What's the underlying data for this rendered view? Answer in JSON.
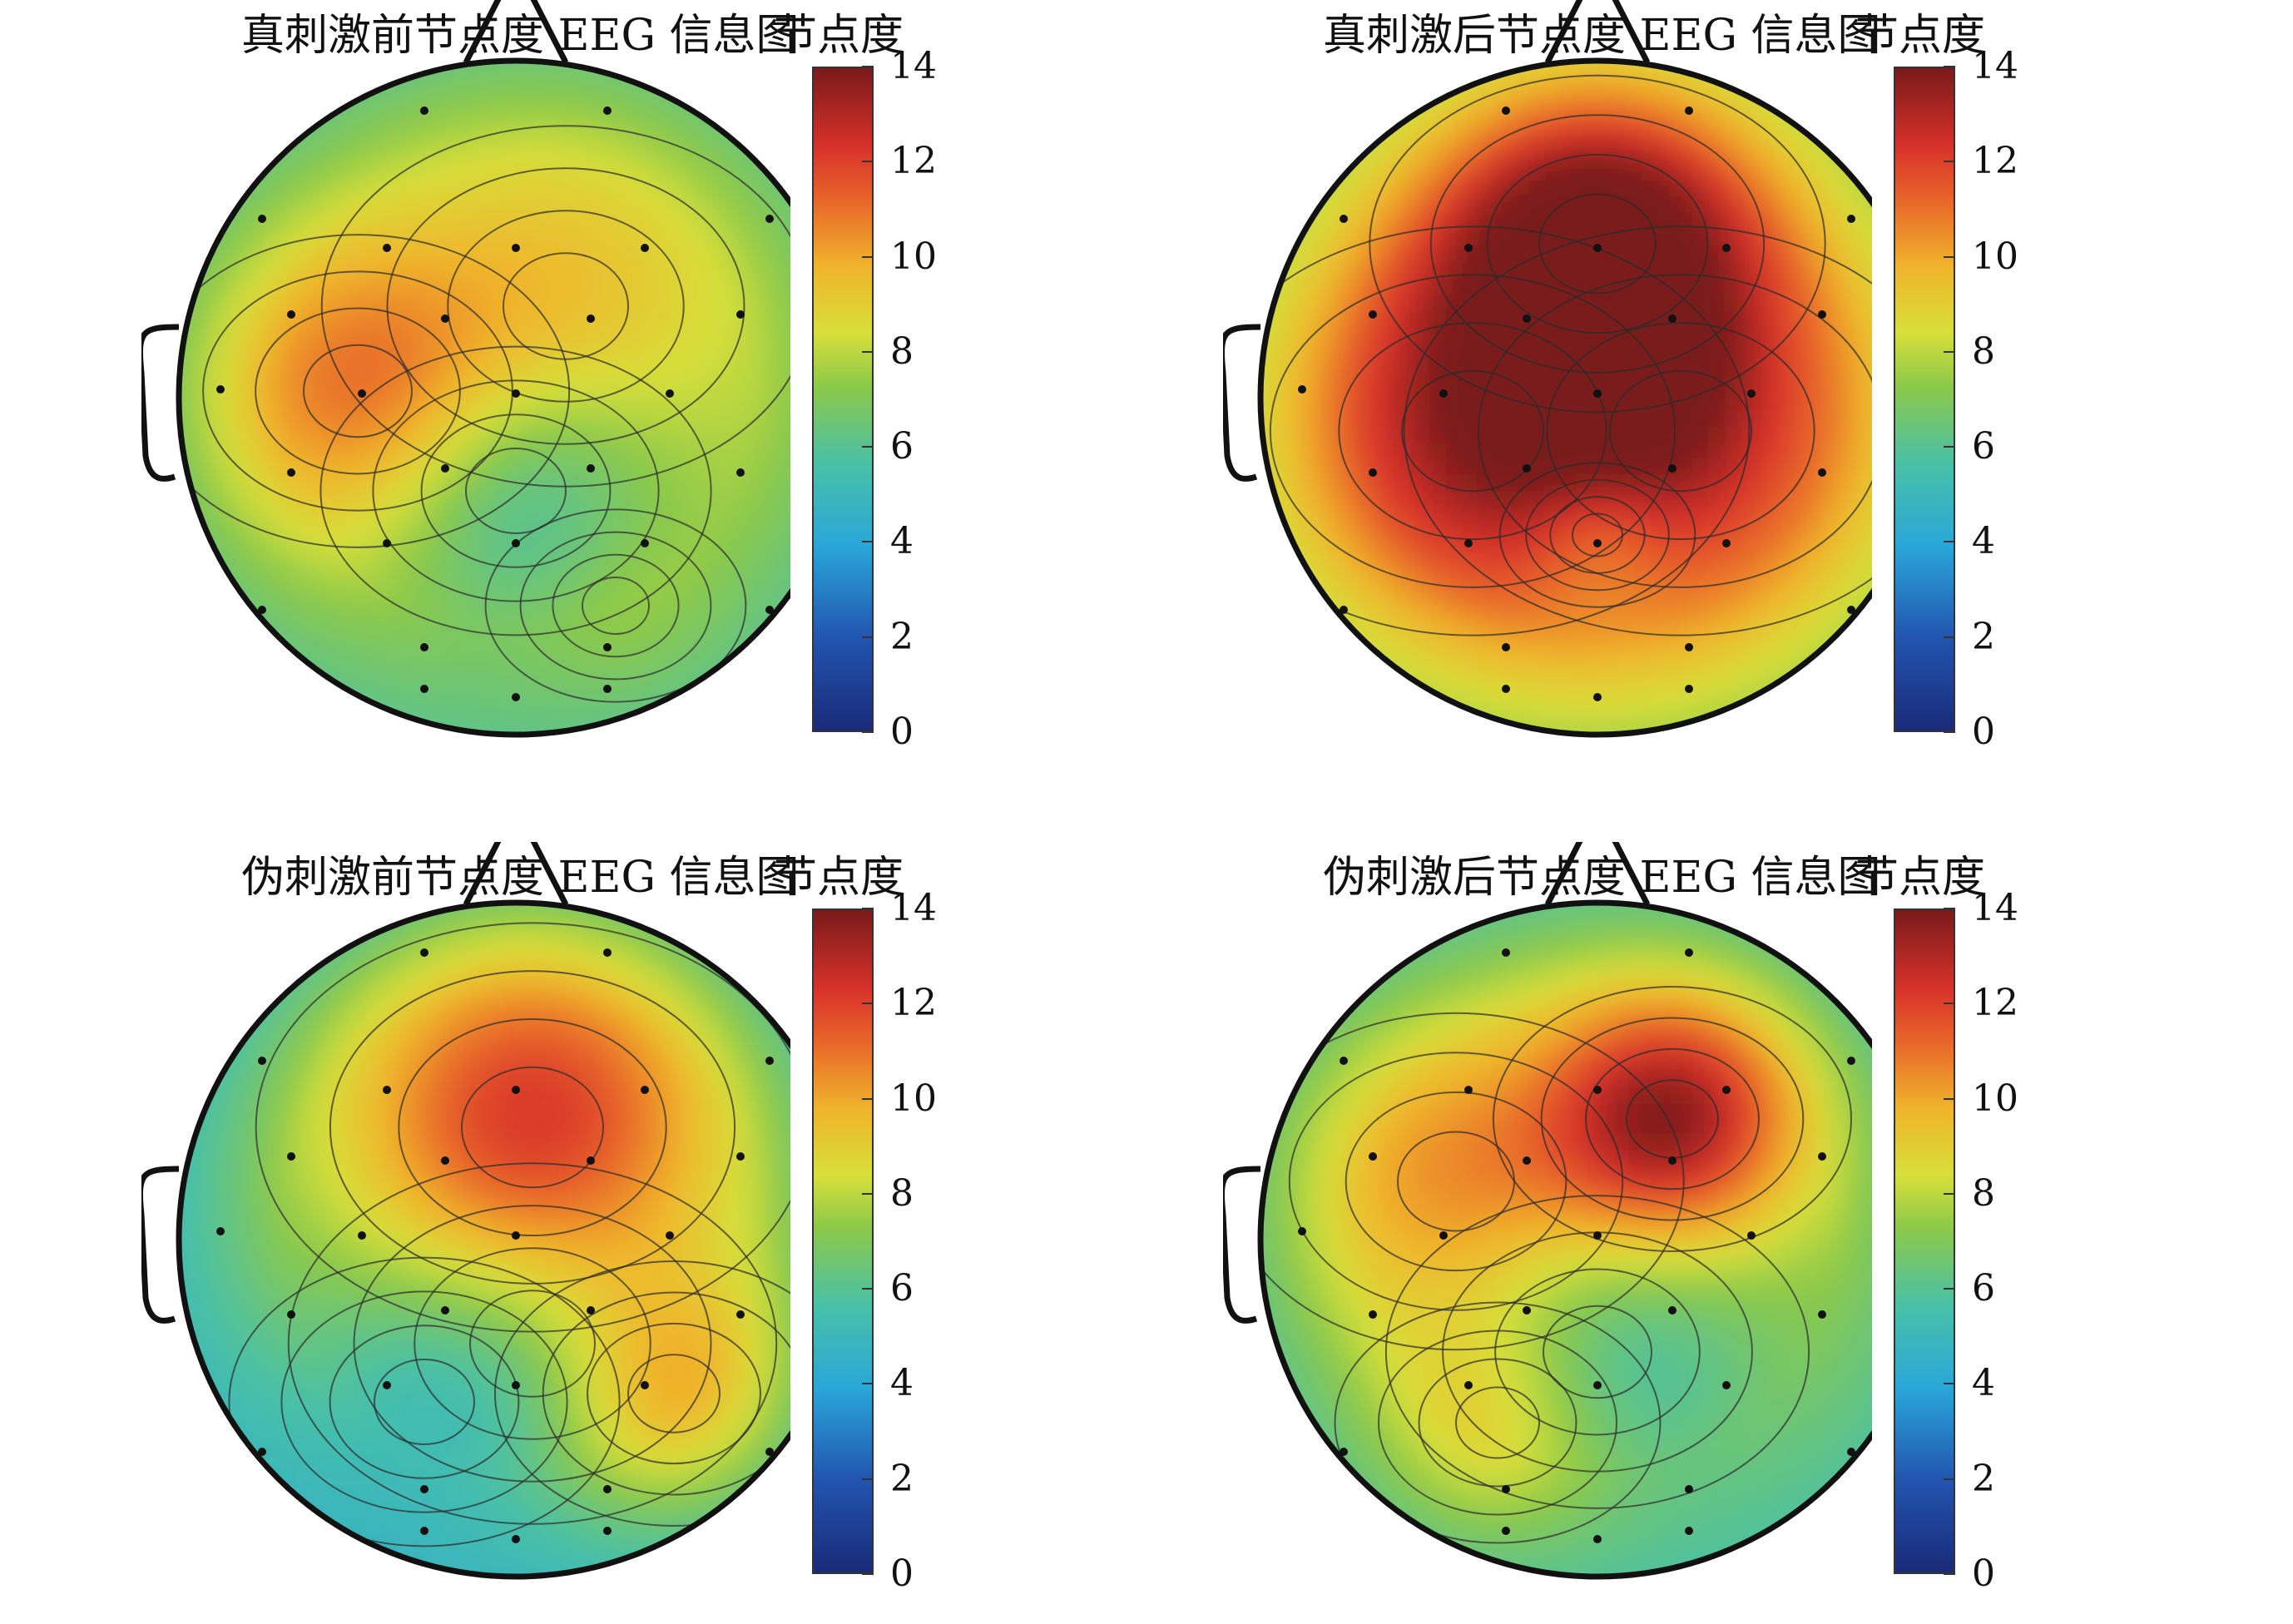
{
  "chart_data": [
    {
      "type": "heatmap",
      "title": "真刺激前节点度 EEG 信息图",
      "colorbar_label": "节点度",
      "colorbar_ticks": [
        "14",
        "12",
        "10",
        "8",
        "6",
        "4",
        "2",
        "0"
      ],
      "range": [
        0,
        14
      ],
      "hotspots": [
        {
          "value": 11.0
        },
        {
          "value": 9.5
        },
        {
          "value": 5.0
        },
        {
          "value": 8.0
        }
      ]
    },
    {
      "type": "heatmap",
      "title": "真刺激后节点度 EEG 信息图",
      "colorbar_label": "节点度",
      "colorbar_ticks": [
        "14",
        "12",
        "10",
        "8",
        "6",
        "4",
        "2",
        "0"
      ],
      "range": [
        0,
        14
      ],
      "hotspots": [
        {
          "value": 14.0
        },
        {
          "value": 12.5
        },
        {
          "value": 12.0
        },
        {
          "value": 7.0
        }
      ]
    },
    {
      "type": "heatmap",
      "title": "伪刺激前节点度 EEG 信息图",
      "colorbar_label": "节点度",
      "colorbar_ticks": [
        "14",
        "12",
        "10",
        "8",
        "6",
        "4",
        "2",
        "0"
      ],
      "range": [
        0,
        14
      ],
      "hotspots": [
        {
          "value": 12.5
        },
        {
          "value": 5.0
        },
        {
          "value": 5.5
        },
        {
          "value": 10.0
        }
      ]
    },
    {
      "type": "heatmap",
      "title": "伪刺激后节点度 EEG 信息图",
      "colorbar_label": "节点度",
      "colorbar_ticks": [
        "14",
        "12",
        "10",
        "8",
        "6",
        "4",
        "2",
        "0"
      ],
      "range": [
        0,
        14
      ],
      "hotspots": [
        {
          "value": 13.5
        },
        {
          "value": 10.5
        },
        {
          "value": 5.0
        },
        {
          "value": 9.5
        }
      ]
    }
  ]
}
